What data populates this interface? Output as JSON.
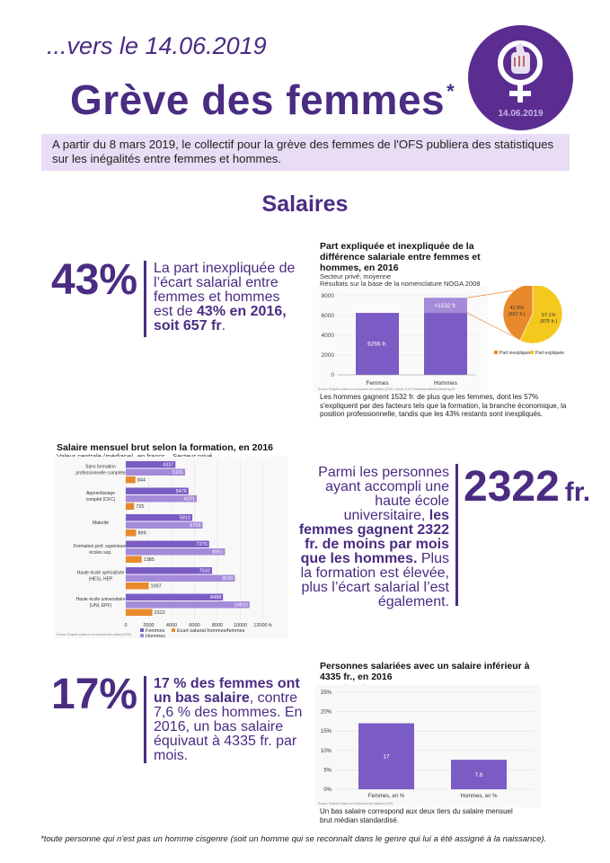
{
  "header": {
    "date_line": "...vers le 14.06.2019",
    "title": "Grève des femmes",
    "title_mark": "*",
    "logo_date": "14.06.2019"
  },
  "intro": "A partir du 8 mars 2019, le collectif pour la grève des femmes de l'OFS publiera des statistiques sur les inégalités entre femmes et hommes.",
  "section_title": "Salaires",
  "stat43": {
    "number": "43%",
    "text_1": "La part inexpliquée de l’écart salarial entre femmes et hommes est de ",
    "text_bold": "43% en 2016, soit 657 fr",
    "text_2": "."
  },
  "stat2322": {
    "number": "2322",
    "unit": "fr.",
    "text_1": "Parmi les personnes ayant accompli une haute école universitaire, ",
    "text_bold": "les femmes gagnent 2322 fr. de moins par mois que les hommes.",
    "text_2": " Plus la formation est élevée, plus l’écart salarial l’est également."
  },
  "stat17": {
    "number": "17%",
    "text_bold": "17 % des femmes ont un bas salaire",
    "text_1": ", contre 7,6 % des hommes. En 2016, un bas salaire équivaut à 4335 fr. par mois."
  },
  "footnote": "*toute personne qui n'est pas un homme cisgenre (soit un homme qui se reconnaît dans le genre qui lui a été assigné à la naissance).",
  "colors": {
    "accent": "#4a2c82",
    "bar_purple": "#7b5cc4",
    "bar_light": "#a48ad8",
    "orange": "#e8892c",
    "yellow": "#f5c81e",
    "intro_bg": "#e8ddf5"
  },
  "chart_data": [
    {
      "type": "bar",
      "title": "Part expliquée et inexpliquée de la différence salariale entre femmes et hommes, en 2016",
      "subtitle_1": "Secteur privé, moyenne",
      "subtitle_2": "Résultats sur la base de la nomenclature NOGA 2008",
      "categories": [
        "Femmes",
        "Hommes"
      ],
      "series": [
        {
          "values": [
            6266,
            6266
          ]
        },
        {
          "values": [
            0,
            1532
          ]
        }
      ],
      "data_labels": [
        "6266 fr.",
        "+1532 fr."
      ],
      "yticks": [
        "0",
        "2000",
        "4000",
        "6000",
        "8000"
      ],
      "ylim": [
        0,
        8000
      ],
      "source": "Source: Enquête suisse sur la structure des salaires (ESS). Calculs: B,S,S Volkswirtschaftliche Beratung AG",
      "caption": "Les hommes gagnent 1532 fr. de plus que les femmes, dont les 57% s’expliquent par des facteurs tels que la formation, la branche économique, la position professionnelle, tandis que les 43% restants sont inexpliqués."
    },
    {
      "type": "pie",
      "slices": [
        {
          "name": "Part inexpliquée",
          "value": 42.9,
          "label_1": "42.9%",
          "label_2": "(657 fr.)"
        },
        {
          "name": "Part expliquée",
          "value": 57.1,
          "label_1": "57.1%",
          "label_2": "(875 fr.)"
        }
      ]
    },
    {
      "type": "bar",
      "title": "Salaire mensuel brut selon la formation, en 2016",
      "subtitle": "Valeur centrale (médiane), en francs – Secteur privé",
      "categories": [
        [
          "Sans formation",
          "professionnelle complète"
        ],
        [
          "Apprentissage",
          "complet (CFC)"
        ],
        [
          "Maturité"
        ],
        [
          "Formation prof. supérieure,",
          "écoles sup."
        ],
        [
          "Haute école spécialisée",
          "(HES), HEP"
        ],
        [
          "Haute école universitaire",
          "(UNI, EPF)"
        ]
      ],
      "series": [
        {
          "name": "Femmes",
          "values": [
            4337,
            5476,
            5810,
            7276,
            7532,
            8488
          ]
        },
        {
          "name": "Hommes",
          "values": [
            5181,
            6201,
            6709,
            8661,
            9530,
            10810
          ]
        },
        {
          "name": "Ecart salarial hommes/femmes",
          "values": [
            844,
            725,
            899,
            1385,
            1997,
            2322
          ]
        }
      ],
      "xticks": [
        "0",
        "2000",
        "4000",
        "6000",
        "8000",
        "10000",
        "12000 fr."
      ],
      "xlim": [
        0,
        12000
      ],
      "source": "Source: Enquête suisse sur la structure des salaires (ESS)"
    },
    {
      "type": "bar",
      "title": "Personnes salariées avec un salaire inférieur à 4335 fr., en 2016",
      "subtitle": "Economie totale",
      "categories": [
        "Femmes, en %",
        "Hommes, en %"
      ],
      "values": [
        17,
        7.6
      ],
      "data_labels": [
        "17",
        "7.6"
      ],
      "yticks": [
        "0%",
        "5%",
        "10%",
        "15%",
        "20%",
        "25%"
      ],
      "ylim": [
        0,
        25
      ],
      "source": "Source: Enquête suisse sur la structure des salaires (ESS)",
      "caption": "Un bas salaire correspond aux deux tiers du salaire mensuel brut médian standardisé."
    }
  ]
}
